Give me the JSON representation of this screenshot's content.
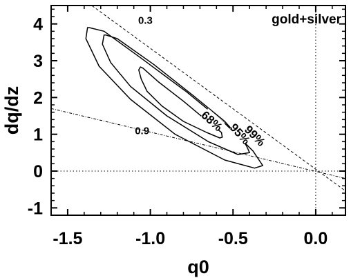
{
  "chart_data": {
    "type": "line",
    "title": "",
    "panel_label": "gold+silver",
    "xlabel": "q0",
    "ylabel": "dq/dz",
    "xlim": [
      -1.6,
      0.18
    ],
    "ylim": [
      -1.2,
      4.5
    ],
    "grid": false,
    "x_ticks": [
      {
        "value": -1.5,
        "label": "-1.5"
      },
      {
        "value": -1.0,
        "label": "-1.0"
      },
      {
        "value": -0.5,
        "label": "-0.5"
      },
      {
        "value": 0.0,
        "label": "0.0"
      }
    ],
    "y_ticks": [
      {
        "value": -1,
        "label": "-1"
      },
      {
        "value": 0,
        "label": "0"
      },
      {
        "value": 1,
        "label": "1"
      },
      {
        "value": 2,
        "label": "2"
      },
      {
        "value": 3,
        "label": "3"
      },
      {
        "value": 4,
        "label": "4"
      }
    ],
    "reference_lines": [
      {
        "style": "dotted",
        "orientation": "horizontal",
        "value": 0
      },
      {
        "style": "dotted",
        "orientation": "vertical",
        "value": 0
      }
    ],
    "constant_jerk_lines": [
      {
        "label": "0.3",
        "style": "dashed",
        "points": [
          [
            -1.4,
            4.65
          ],
          [
            0.18,
            -0.54
          ]
        ]
      },
      {
        "label": "0.9",
        "style": "dash-dot",
        "points": [
          [
            -1.6,
            1.7
          ],
          [
            0.18,
            -0.2
          ]
        ]
      }
    ],
    "series": [
      {
        "name": "68%",
        "label": "68%",
        "label_at": [
          -0.63,
          1.35
        ],
        "label_angle": 42,
        "center": [
          -0.81,
          1.67
        ],
        "points": [
          [
            -1.06,
            2.83
          ],
          [
            -1.045,
            2.8
          ],
          [
            -0.95,
            2.42
          ],
          [
            -0.8,
            1.9
          ],
          [
            -0.68,
            1.45
          ],
          [
            -0.57,
            1.05
          ],
          [
            -0.565,
            0.92
          ],
          [
            -0.58,
            0.9
          ],
          [
            -0.66,
            1.05
          ],
          [
            -0.8,
            1.35
          ],
          [
            -0.93,
            1.77
          ],
          [
            -1.02,
            2.17
          ],
          [
            -1.055,
            2.5
          ],
          [
            -1.07,
            2.75
          ],
          [
            -1.06,
            2.83
          ]
        ]
      },
      {
        "name": "95%",
        "label": "95%",
        "label_at": [
          -0.46,
          1.0
        ],
        "label_angle": 48,
        "center": [
          -0.84,
          1.95
        ],
        "points": [
          [
            -1.27,
            3.7
          ],
          [
            -1.2,
            3.6
          ],
          [
            -0.98,
            2.9
          ],
          [
            -0.74,
            2.05
          ],
          [
            -0.55,
            1.35
          ],
          [
            -0.42,
            0.7
          ],
          [
            -0.4,
            0.5
          ],
          [
            -0.47,
            0.45
          ],
          [
            -0.65,
            0.8
          ],
          [
            -0.9,
            1.5
          ],
          [
            -1.12,
            2.3
          ],
          [
            -1.24,
            2.95
          ],
          [
            -1.29,
            3.45
          ],
          [
            -1.28,
            3.7
          ],
          [
            -1.27,
            3.7
          ]
        ]
      },
      {
        "name": "99%",
        "label": "99%",
        "label_at": [
          -0.37,
          0.95
        ],
        "label_angle": 45,
        "center": [
          -0.82,
          2.02
        ],
        "points": [
          [
            -1.37,
            3.9
          ],
          [
            -1.28,
            3.8
          ],
          [
            -1.05,
            3.05
          ],
          [
            -0.78,
            2.15
          ],
          [
            -0.55,
            1.3
          ],
          [
            -0.38,
            0.55
          ],
          [
            -0.32,
            0.15
          ],
          [
            -0.37,
            0.08
          ],
          [
            -0.55,
            0.3
          ],
          [
            -0.85,
            1.0
          ],
          [
            -1.12,
            1.95
          ],
          [
            -1.31,
            2.85
          ],
          [
            -1.39,
            3.6
          ],
          [
            -1.38,
            3.9
          ],
          [
            -1.37,
            3.9
          ]
        ]
      }
    ]
  }
}
